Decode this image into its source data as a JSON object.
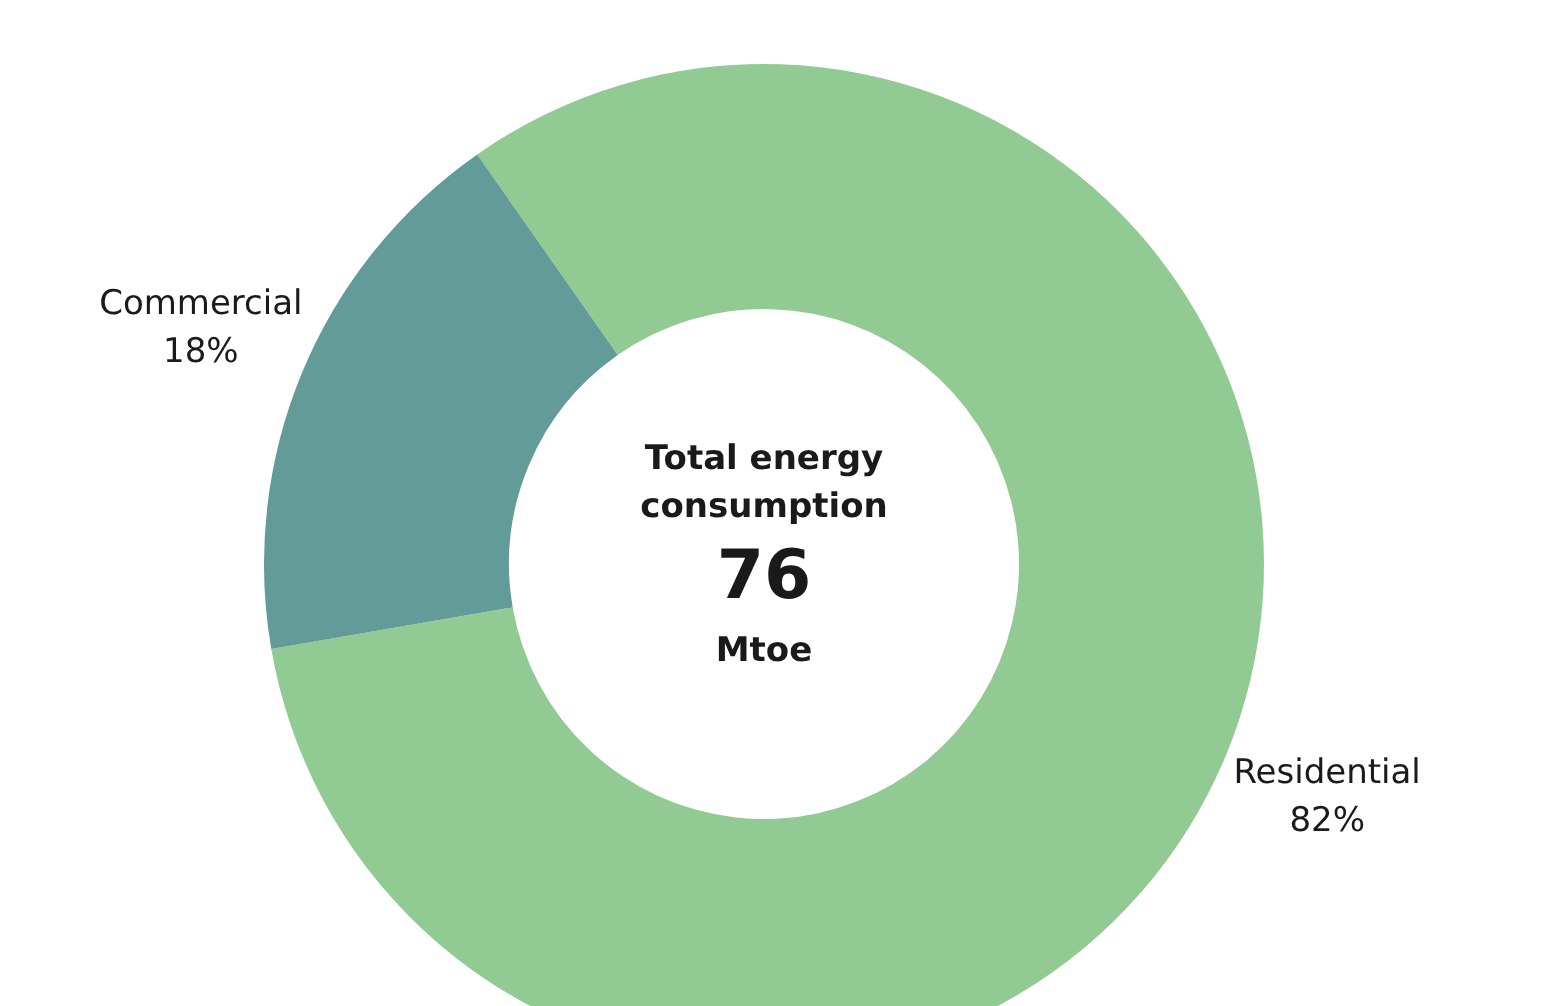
{
  "chart_data": {
    "type": "donut",
    "categories": [
      "Residential",
      "Commercial"
    ],
    "values": [
      82,
      18
    ],
    "colors": [
      "#91cb93",
      "#639b98"
    ],
    "value_labels": [
      "82%",
      "18%"
    ],
    "legend": false,
    "annotations": [
      "Total energy consumption",
      "76",
      "Mtoe"
    ]
  }
}
